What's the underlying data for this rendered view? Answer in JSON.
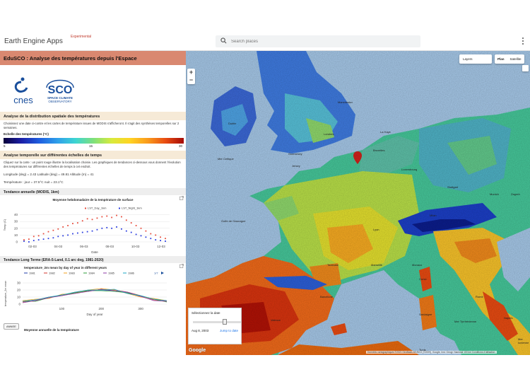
{
  "header": {
    "app_title": "Earth Engine Apps",
    "app_badge": "Experimental",
    "search_placeholder": "Search places"
  },
  "panel": {
    "title": "EduSCO : Analyse des températures depuis l'Espace",
    "logos": {
      "cnes": "cnes",
      "sco_big": "SCO",
      "sco_small_1": "SPACE CLIMATE",
      "sco_small_2": "OBSERVATORY"
    },
    "spatial": {
      "heading": "Analyse de la distribution spatiale des températures",
      "text": "Choisissez une date ci-contre et les cartes de température issues de MODIS s'afficheront. Il s'agit des synthèses temporelles sur 2 semaines.",
      "scale_label": "Echelle des températures (°C)",
      "scale_min": "5",
      "scale_mid": "15",
      "scale_max": "30"
    },
    "temporal": {
      "heading": "Analyse temporelle sur différentes échelles de temps",
      "text": "Cliquez sur la carte : un point rouge illustre la localisation choisie. Les graphiques de tendances ci-dessous vous donnent l'évolution des températures sur différentes échelles de temps à cet endroit.",
      "coords": "Longitude (deg) = 2.43     Latitude (deg) = 49.81     Altitude (m) = 41",
      "temperature": "Température :     jour = 37.5°C     nuit = 23.1°C"
    },
    "annual": {
      "heading": "Tendance annuelle (MODIS, 1km)",
      "chart_title": "Moyenne hebdomadaire de la température de surface",
      "ylabel": "Temp (C)",
      "xlabel": "Date"
    },
    "longterm": {
      "heading": "Tendance Long Terme (ERA-5-Land, 0.1 arc deg, 1981-2020)",
      "chart_title": "temperature_2m mean by day of year in different years",
      "ylabel": "temperature_2m mean",
      "xlabel": "Day of year",
      "page_indicator": "1/7",
      "select_label": "ANNEE"
    },
    "annual_mean_title": "Moyenne annuelle de la température"
  },
  "map": {
    "layers_label": "Layers",
    "plan_label": "Plan",
    "satellite_label": "Satellite",
    "zoom_in": "+",
    "zoom_out": "−",
    "date_label": "Sélectionnez la date",
    "date_value": "Aug 8, 2003",
    "jump_label": "Jump to date",
    "google": "Google",
    "attribution": "Données cartographiques ©2021 GeoBasis-DE/BKG (©2009), Google, Inst. Geogr. Nacional    100 km    Conditions d'utilisation",
    "cities": [
      "Manchester",
      "Dublin",
      "La Haye",
      "Londres",
      "Bruxelles",
      "Luxembourg",
      "Mer Celtique",
      "Guernesey",
      "Jersey",
      "Stuttgart",
      "Munich",
      "Golfe de Gascogne",
      "Toulouse",
      "Marseille",
      "Barcelone",
      "Valence",
      "Rome",
      "Naples",
      "Mer Tyrrhénienne",
      "Mer Ionienne",
      "Sardaigne",
      "Tunis",
      "Zagreb",
      "Corse",
      "Monaco",
      "Lyon",
      "Milan"
    ]
  },
  "chart_data": [
    {
      "type": "scatter",
      "title": "Moyenne hebdomadaire de la température de surface",
      "xlabel": "Date",
      "ylabel": "Temp (C)",
      "categories": [
        "02-03",
        "04-03",
        "06-03",
        "08-03",
        "10-03",
        "12-03"
      ],
      "ylim": [
        0,
        50
      ],
      "yticks": [
        0,
        10,
        20,
        30,
        40
      ],
      "series": [
        {
          "name": "LST_Day_1km",
          "color": "#e74c3c",
          "values": [
            3,
            4,
            8,
            9,
            12,
            15,
            17,
            19,
            22,
            24,
            27,
            28,
            31,
            34,
            33,
            35,
            37,
            38,
            36,
            39,
            37,
            32,
            28,
            24,
            20,
            16,
            12,
            10,
            7,
            5
          ]
        },
        {
          "name": "LST_Night_1km",
          "color": "#2c3ee0",
          "values": [
            1,
            0,
            2,
            3,
            4,
            5,
            6,
            8,
            9,
            10,
            12,
            13,
            14,
            15,
            16,
            18,
            20,
            21,
            20,
            22,
            19,
            16,
            14,
            11,
            9,
            7,
            5,
            3,
            2,
            1
          ]
        }
      ]
    },
    {
      "type": "line",
      "title": "temperature_2m mean by day of year in different years",
      "xlabel": "Day of year",
      "ylabel": "temperature_2m mean",
      "x_ticks": [
        100,
        200,
        300
      ],
      "y_ticks": [
        0,
        10,
        20,
        30
      ],
      "legend": [
        "1981",
        "1982",
        "1983",
        "1984",
        "1985",
        "1986"
      ],
      "series": [
        {
          "name": "1981",
          "color": "#1f3ea8",
          "values": [
            4,
            6,
            9,
            13,
            16,
            19,
            20,
            19,
            16,
            11,
            7,
            5
          ]
        },
        {
          "name": "1982",
          "color": "#d3362e",
          "values": [
            3,
            5,
            10,
            12,
            17,
            18,
            21,
            20,
            17,
            12,
            6,
            4
          ]
        },
        {
          "name": "1983",
          "color": "#f2a21c",
          "values": [
            5,
            7,
            8,
            14,
            15,
            20,
            22,
            20,
            15,
            10,
            8,
            5
          ]
        },
        {
          "name": "1984",
          "color": "#2e9c3a",
          "values": [
            4,
            4,
            9,
            13,
            16,
            19,
            19,
            18,
            16,
            12,
            7,
            3
          ]
        },
        {
          "name": "1985",
          "color": "#8e3aa6",
          "values": [
            2,
            5,
            9,
            12,
            15,
            18,
            21,
            19,
            17,
            11,
            5,
            4
          ]
        },
        {
          "name": "1986",
          "color": "#1ba4c4",
          "values": [
            4,
            6,
            10,
            13,
            17,
            20,
            20,
            21,
            15,
            12,
            7,
            5
          ]
        }
      ]
    }
  ]
}
